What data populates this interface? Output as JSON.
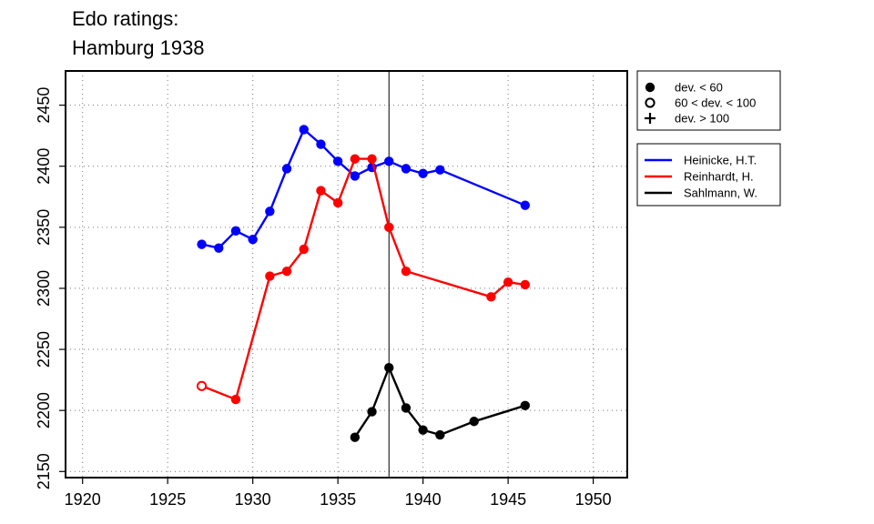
{
  "chart_data": {
    "type": "line",
    "title_lines": [
      "Edo ratings:",
      "Hamburg 1938"
    ],
    "xlabel": "",
    "ylabel": "",
    "xlim": [
      1919,
      1952
    ],
    "ylim": [
      2145,
      2478
    ],
    "x_ticks": [
      1920,
      1925,
      1930,
      1935,
      1940,
      1945,
      1950
    ],
    "y_ticks": [
      2150,
      2200,
      2250,
      2300,
      2350,
      2400,
      2450
    ],
    "grid": true,
    "reference_line_x": 1938,
    "marker_legend": [
      {
        "symbol": "filled-circle",
        "label": "dev. < 60"
      },
      {
        "symbol": "open-circle",
        "label": "60 < dev. < 100"
      },
      {
        "symbol": "plus",
        "label": "dev. > 100"
      }
    ],
    "series": [
      {
        "name": "Heinicke, H.T.",
        "color": "#0000ff",
        "points": [
          {
            "x": 1927,
            "y": 2336,
            "marker": "filled-circle"
          },
          {
            "x": 1928,
            "y": 2333,
            "marker": "filled-circle"
          },
          {
            "x": 1929,
            "y": 2347,
            "marker": "filled-circle"
          },
          {
            "x": 1930,
            "y": 2340,
            "marker": "filled-circle"
          },
          {
            "x": 1931,
            "y": 2363,
            "marker": "filled-circle"
          },
          {
            "x": 1932,
            "y": 2398,
            "marker": "filled-circle"
          },
          {
            "x": 1933,
            "y": 2430,
            "marker": "filled-circle"
          },
          {
            "x": 1934,
            "y": 2418,
            "marker": "filled-circle"
          },
          {
            "x": 1935,
            "y": 2404,
            "marker": "filled-circle"
          },
          {
            "x": 1936,
            "y": 2392,
            "marker": "filled-circle"
          },
          {
            "x": 1937,
            "y": 2399,
            "marker": "filled-circle"
          },
          {
            "x": 1938,
            "y": 2404,
            "marker": "filled-circle"
          },
          {
            "x": 1939,
            "y": 2398,
            "marker": "filled-circle"
          },
          {
            "x": 1940,
            "y": 2394,
            "marker": "filled-circle"
          },
          {
            "x": 1941,
            "y": 2397,
            "marker": "filled-circle"
          },
          {
            "x": 1946,
            "y": 2368,
            "marker": "filled-circle"
          }
        ]
      },
      {
        "name": "Reinhardt, H.",
        "color": "#ff0000",
        "points": [
          {
            "x": 1927,
            "y": 2220,
            "marker": "open-circle"
          },
          {
            "x": 1929,
            "y": 2209,
            "marker": "filled-circle"
          },
          {
            "x": 1931,
            "y": 2310,
            "marker": "filled-circle"
          },
          {
            "x": 1932,
            "y": 2314,
            "marker": "filled-circle"
          },
          {
            "x": 1933,
            "y": 2332,
            "marker": "filled-circle"
          },
          {
            "x": 1934,
            "y": 2380,
            "marker": "filled-circle"
          },
          {
            "x": 1935,
            "y": 2370,
            "marker": "filled-circle"
          },
          {
            "x": 1936,
            "y": 2406,
            "marker": "filled-circle"
          },
          {
            "x": 1937,
            "y": 2406,
            "marker": "filled-circle"
          },
          {
            "x": 1938,
            "y": 2350,
            "marker": "filled-circle"
          },
          {
            "x": 1939,
            "y": 2314,
            "marker": "filled-circle"
          },
          {
            "x": 1944,
            "y": 2293,
            "marker": "filled-circle"
          },
          {
            "x": 1945,
            "y": 2305,
            "marker": "filled-circle"
          },
          {
            "x": 1946,
            "y": 2303,
            "marker": "filled-circle"
          }
        ]
      },
      {
        "name": "Sahlmann, W.",
        "color": "#000000",
        "points": [
          {
            "x": 1936,
            "y": 2178,
            "marker": "filled-circle"
          },
          {
            "x": 1937,
            "y": 2199,
            "marker": "filled-circle"
          },
          {
            "x": 1938,
            "y": 2235,
            "marker": "filled-circle"
          },
          {
            "x": 1939,
            "y": 2202,
            "marker": "filled-circle"
          },
          {
            "x": 1940,
            "y": 2184,
            "marker": "filled-circle"
          },
          {
            "x": 1941,
            "y": 2180,
            "marker": "filled-circle"
          },
          {
            "x": 1943,
            "y": 2191,
            "marker": "filled-circle"
          },
          {
            "x": 1946,
            "y": 2204,
            "marker": "filled-circle"
          }
        ]
      }
    ]
  }
}
